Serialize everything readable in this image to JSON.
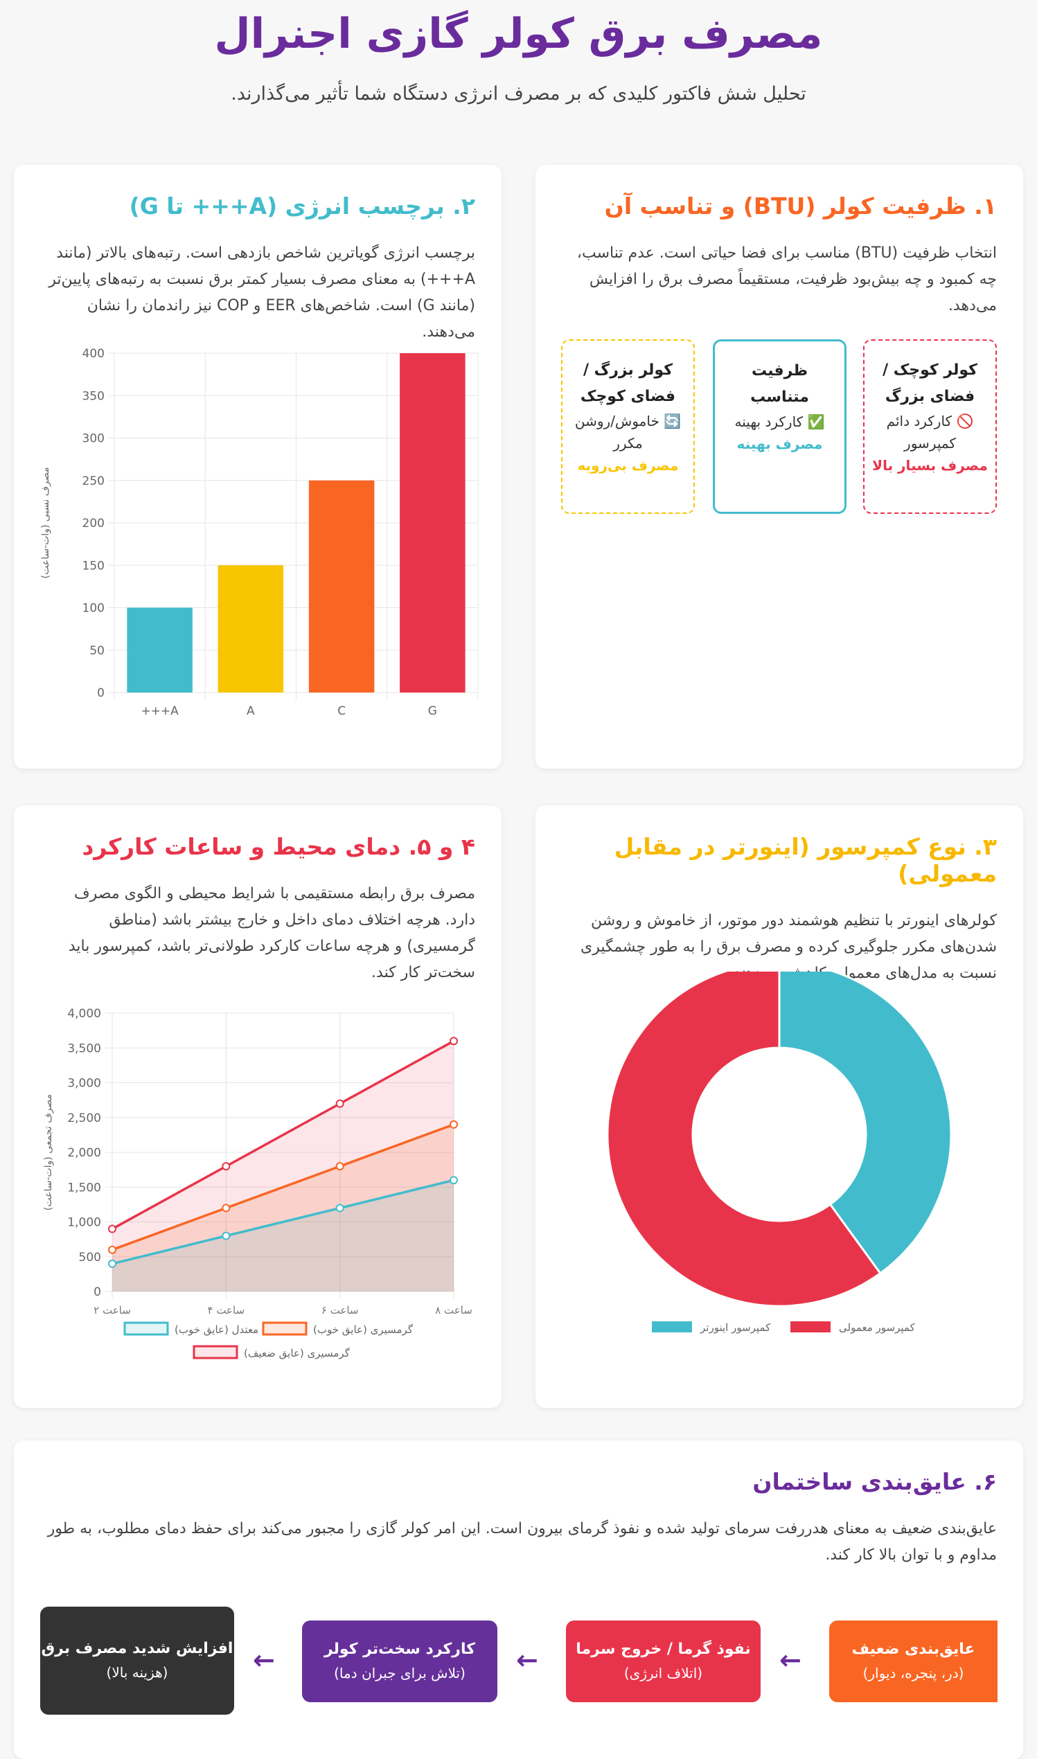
{
  "header": {
    "title": "مصرف برق کولر گازی اجنرال",
    "subtitle": "تحلیل شش فاکتور کلیدی که بر مصرف انرژی دستگاه شما تأثیر می‌گذارند."
  },
  "colors": {
    "purple": "#6a2c9c",
    "teal": "#42bccc",
    "yellow": "#f7c600",
    "orange": "#f96624",
    "red": "#e8344a",
    "dark": "#333333"
  },
  "section1": {
    "title": "۱. ظرفیت کولر (BTU) و تناسب آن",
    "text": "انتخاب ظرفیت (BTU) مناسب برای فضا حیاتی است. عدم تناسب، چه کمبود و چه بیش‌بود ظرفیت، مستقیماً مصرف برق را افزایش می‌دهد.",
    "boxes": [
      {
        "title": "کولر کوچک / فضای بزرگ",
        "icon": "prohibited-icon",
        "glyph": "🚫",
        "desc": "کارکرد دائم کمپرسور",
        "result": "مصرف بسیار بالا"
      },
      {
        "title": "ظرفیت متناسب",
        "icon": "check-icon",
        "glyph": "✅",
        "desc": "کارکرد بهینه",
        "result": "مصرف بهینه"
      },
      {
        "title": "کولر بزرگ / فضای کوچک",
        "icon": "cycle-icon",
        "glyph": "🔄",
        "desc": "خاموش/روشن مکرر",
        "result": "مصرف بی‌رویه"
      }
    ]
  },
  "section2": {
    "title": "۲. برچسب انرژی (A+++ تا G)",
    "text": "برچسب انرژی گویاترین شاخص بازدهی است. رتبه‌های بالاتر (مانند A+++) به معنای مصرف بسیار کمتر برق نسبت به رتبه‌های پایین‌تر (مانند G) است. شاخص‌های EER و COP نیز راندمان را نشان می‌دهند."
  },
  "section3": {
    "title": "۳. نوع کمپرسور (اینورتر در مقابل معمولی)",
    "text": "کولرهای اینورتر با تنظیم هوشمند دور موتور، از خاموش و روشن شدن‌های مکرر جلوگیری کرده و مصرف برق را به طور چشمگیری نسبت به مدل‌های معمولی کاهش می‌دهند."
  },
  "section45": {
    "title": "۴ و ۵. دمای محیط و ساعات کارکرد",
    "text": "مصرف برق رابطه مستقیمی با شرایط محیطی و الگوی مصرف دارد. هرچه اختلاف دمای داخل و خارج بیشتر باشد (مناطق گرمسیری) و هرچه ساعات کارکرد طولانی‌تر باشد، کمپرسور باید سخت‌تر کار کند."
  },
  "section6": {
    "title": "۶. عایق‌بندی ساختمان",
    "text": "عایق‌بندی ضعیف به معنای هدررفت سرمای تولید شده و نفوذ گرمای بیرون است. این امر کولر گازی را مجبور می‌کند برای حفظ دمای مطلوب، به طور مداوم و با توان بالا کار کند.",
    "flow": [
      {
        "title": "عایق‌بندی ضعیف",
        "sub": "(در، پنجره، دیوار)",
        "color": "#f96624"
      },
      {
        "title": "نفوذ گرما / خروج سرما",
        "sub": "(اتلاف انرژی)",
        "color": "#e8344a"
      },
      {
        "title": "کارکرد سخت‌تر کولر",
        "sub": "(تلاش برای جبران دما)",
        "color": "#66309a"
      },
      {
        "title": "افزایش شدید مصرف برق",
        "sub": "(هزینه بالا)",
        "color": "#333333"
      }
    ],
    "arrow": "←"
  },
  "chart_data": [
    {
      "type": "bar",
      "categories": [
        "A+++",
        "A",
        "C",
        "G"
      ],
      "category_labels": [
        "+++A",
        "A",
        "C",
        "G"
      ],
      "values": [
        100,
        150,
        250,
        400
      ],
      "colors": [
        "#42bccc",
        "#f7c600",
        "#f96624",
        "#e8344a"
      ],
      "ylabel": "مصرف نسبی (وات-ساعت)",
      "ylim": [
        0,
        400
      ],
      "yticks": [
        0,
        50,
        100,
        150,
        200,
        250,
        300,
        350,
        400
      ],
      "grid": true
    },
    {
      "type": "pie",
      "donut": true,
      "series": [
        {
          "name": "کمپرسور اینورتر",
          "value": 40,
          "color": "#42bccc"
        },
        {
          "name": "کمپرسور معمولی",
          "value": 60,
          "color": "#e8344a"
        }
      ],
      "legend": "bottom"
    },
    {
      "type": "area",
      "categories": [
        "۲ ساعت",
        "۴ ساعت",
        "۶ ساعت",
        "۸ ساعت"
      ],
      "ylabel": "مصرف تجمعی (وات-ساعت)",
      "ylim": [
        0,
        4000
      ],
      "yticks": [
        "0",
        "500",
        "1,000",
        "1,500",
        "2,000",
        "2,500",
        "3,000",
        "3,500",
        "4,000"
      ],
      "grid": true,
      "legend": "bottom",
      "series": [
        {
          "name": "معتدل (عایق خوب)",
          "values": [
            400,
            800,
            1200,
            1600
          ],
          "color": "#42bccc"
        },
        {
          "name": "گرمسیری (عایق خوب)",
          "values": [
            600,
            1200,
            1800,
            2400
          ],
          "color": "#f96624"
        },
        {
          "name": "گرمسیری (عایق ضعیف)",
          "values": [
            900,
            1800,
            2700,
            3600
          ],
          "color": "#e8344a"
        }
      ]
    }
  ]
}
